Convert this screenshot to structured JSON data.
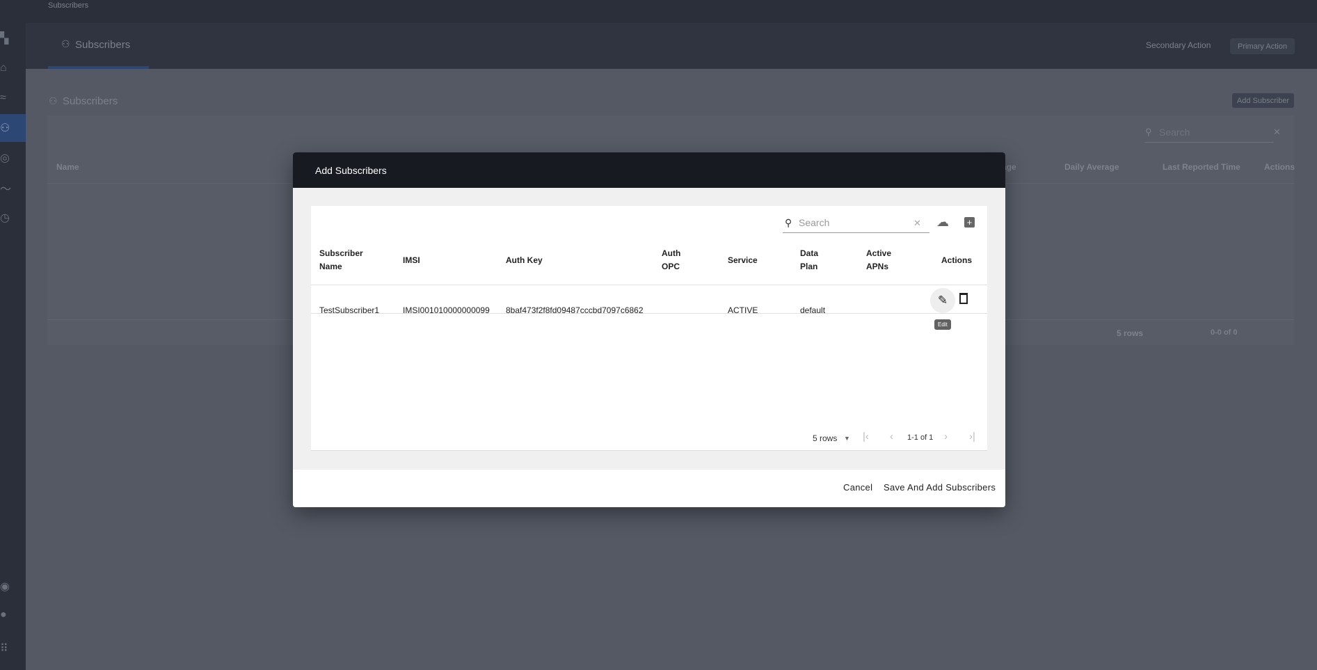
{
  "breadcrumb": "Subscribers",
  "header": {
    "tab_label": "Subscribers",
    "secondary_action": "Secondary Action",
    "primary_action": "Primary Action"
  },
  "page": {
    "title": "Subscribers",
    "add_button": "Add Subscriber",
    "search_placeholder": "Search",
    "columns": [
      "Name",
      "age",
      "Daily Average",
      "Last Reported Time",
      "Actions"
    ],
    "pagination": {
      "rows": "5 rows",
      "range": "0-0 of 0"
    }
  },
  "modal": {
    "title": "Add Subscribers",
    "search_placeholder": "Search",
    "columns": {
      "name": [
        "Subscriber",
        "Name"
      ],
      "imsi": "IMSI",
      "auth_key": "Auth Key",
      "auth_opc": [
        "Auth",
        "OPC"
      ],
      "service": "Service",
      "data_plan": [
        "Data",
        "Plan"
      ],
      "active_apns": [
        "Active",
        "APNs"
      ],
      "actions": "Actions"
    },
    "rows": [
      {
        "name": "TestSubscriber1",
        "imsi": "IMSI001010000000099",
        "auth_key": "8baf473f2f8fd09487cccbd7097c6862",
        "auth_opc": "",
        "service": "ACTIVE",
        "data_plan": "default",
        "active_apns": ""
      }
    ],
    "tooltip": "Edit",
    "pagination": {
      "rows": "5 rows",
      "range": "1-1 of 1"
    },
    "cancel": "Cancel",
    "save": "Save And Add Subscribers"
  },
  "colors": {
    "modal_header": "#171a21",
    "sidebar_active": "#2d4775"
  }
}
